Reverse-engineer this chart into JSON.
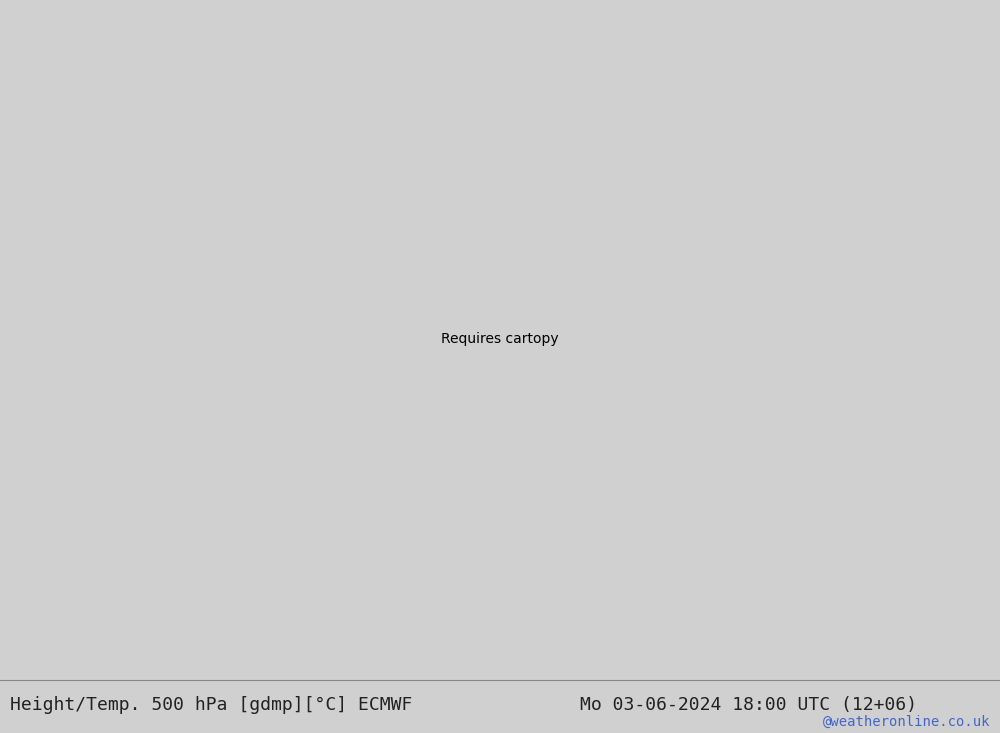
{
  "title_left": "Height/Temp. 500 hPa [gdmp][°C] ECMWF",
  "title_right": "Mo 03-06-2024 18:00 UTC (12+06)",
  "watermark": "@weatheronline.co.uk",
  "title_color": "#222222",
  "watermark_color": "#4466cc",
  "font_size_title": 13,
  "font_size_watermark": 10,
  "bg_color": "#d0d0d0",
  "ocean_color": "#d8d8d8",
  "land_color": "#d0d0d0",
  "green_color": "#c8e8a0",
  "fig_width": 10.0,
  "fig_height": 7.33,
  "dpi": 100
}
